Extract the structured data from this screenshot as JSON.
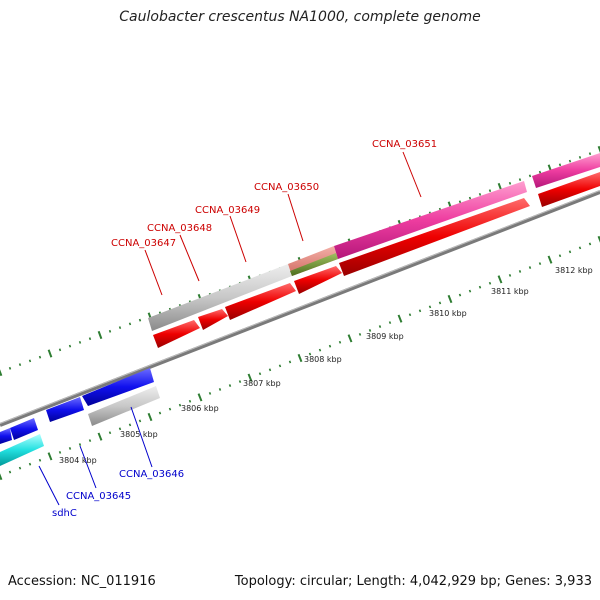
{
  "title": "Caulobacter crescentus NA1000, complete genome",
  "footer": {
    "accession": "Accession: NC_011916",
    "summary": "Topology: circular; Length: 4,042,929 bp; Genes: 3,933"
  },
  "colors": {
    "label_forward": "#cc0000",
    "label_reverse": "#0000cc",
    "tick": "#2e7d32",
    "backbone": "#888888"
  },
  "kbp_labels": [
    "3804 kbp",
    "3805 kbp",
    "3806 kbp",
    "3807 kbp",
    "3808 kbp",
    "3809 kbp",
    "3810 kbp",
    "3811 kbp",
    "3812 kbp"
  ],
  "gene_labels": {
    "ccna_03651": "CCNA_03651",
    "ccna_03650": "CCNA_03650",
    "ccna_03649": "CCNA_03649",
    "ccna_03648": "CCNA_03648",
    "ccna_03647": "CCNA_03647",
    "ccna_03646": "CCNA_03646",
    "ccna_03645": "CCNA_03645",
    "sdhc": "sdhC"
  }
}
